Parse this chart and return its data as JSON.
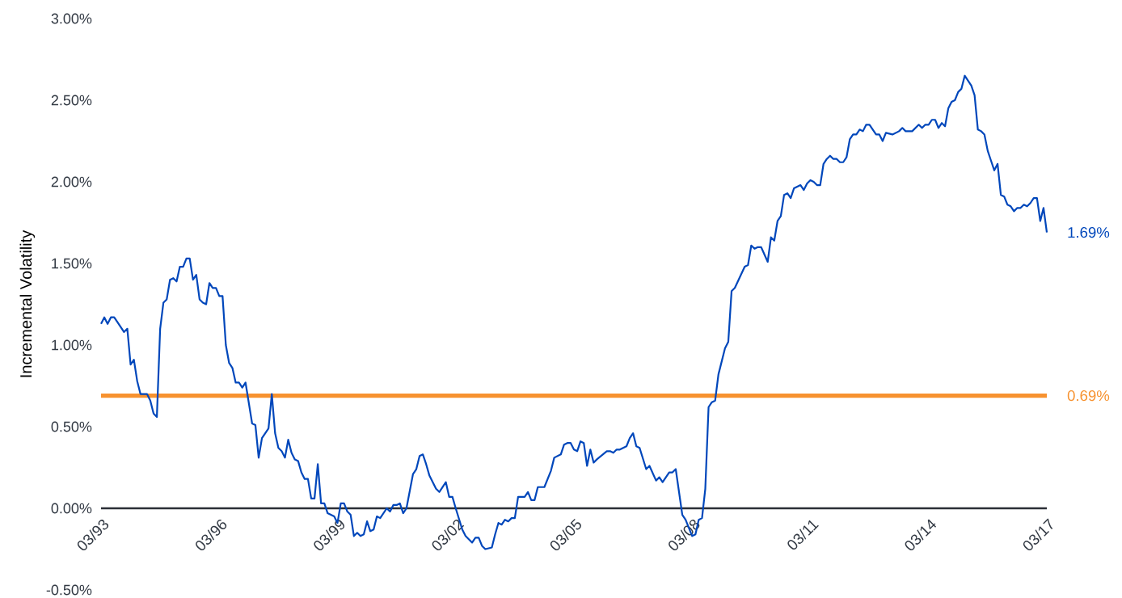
{
  "chart_data": {
    "type": "line",
    "ylabel": "Incremental Volatility",
    "xlim": [
      "1993-03",
      "2017-03"
    ],
    "xticks": [
      {
        "value": "1993-03",
        "label": "03/93"
      },
      {
        "value": "1996-03",
        "label": "03/96"
      },
      {
        "value": "1999-03",
        "label": "03/99"
      },
      {
        "value": "2002-03",
        "label": "03/02"
      },
      {
        "value": "2005-03",
        "label": "03/05"
      },
      {
        "value": "2008-03",
        "label": "03/08"
      },
      {
        "value": "2011-03",
        "label": "03/11"
      },
      {
        "value": "2014-03",
        "label": "03/14"
      },
      {
        "value": "2017-03",
        "label": "03/17"
      }
    ],
    "ylim": [
      -0.5,
      3.0
    ],
    "yticks": [
      {
        "value": -0.5,
        "label": "-0.50%"
      },
      {
        "value": 0,
        "label": "0.00%"
      },
      {
        "value": 0.5,
        "label": "0.50%"
      },
      {
        "value": 1.0,
        "label": "1.00%"
      },
      {
        "value": 1.5,
        "label": "1.50%"
      },
      {
        "value": 2.0,
        "label": "2.00%"
      },
      {
        "value": 2.5,
        "label": "2.50%"
      },
      {
        "value": 3.0,
        "label": "3.00%"
      }
    ],
    "line_style": "solid",
    "series": [
      {
        "color": "#0047bb",
        "x": [
          "1993-03",
          "1993-04",
          "1993-05",
          "1993-06",
          "1993-07",
          "1993-08",
          "1993-10",
          "1993-11",
          "1993-12",
          "1994-01",
          "1994-02",
          "1994-03",
          "1994-05",
          "1994-06",
          "1994-07",
          "1994-08",
          "1994-09",
          "1994-10",
          "1994-11",
          "1994-12",
          "1995-01",
          "1995-02",
          "1995-03",
          "1995-04",
          "1995-05",
          "1995-06",
          "1995-07",
          "1995-08",
          "1995-09",
          "1995-10",
          "1995-11",
          "1995-12",
          "1996-01",
          "1996-02",
          "1996-03",
          "1996-04",
          "1996-05",
          "1996-06",
          "1996-07",
          "1996-08",
          "1996-09",
          "1996-10",
          "1996-11",
          "1997-01",
          "1997-02",
          "1997-03",
          "1997-04",
          "1997-06",
          "1997-07",
          "1997-08",
          "1997-09",
          "1997-10",
          "1997-11",
          "1997-12",
          "1998-01",
          "1998-02",
          "1998-03",
          "1998-04",
          "1998-05",
          "1998-06",
          "1998-07",
          "1998-08",
          "1998-09",
          "1998-10",
          "1998-11",
          "1998-12",
          "1999-02",
          "1999-03",
          "1999-04",
          "1999-05",
          "1999-06",
          "1999-07",
          "1999-08",
          "1999-09",
          "1999-10",
          "1999-11",
          "1999-12",
          "2000-01",
          "2000-02",
          "2000-03",
          "2000-04",
          "2000-06",
          "2000-07",
          "2000-08",
          "2000-09",
          "2000-10",
          "2000-11",
          "2000-12",
          "2001-02",
          "2001-03",
          "2001-04",
          "2001-05",
          "2001-06",
          "2001-07",
          "2001-09",
          "2001-10",
          "2001-12",
          "2002-01",
          "2002-02",
          "2002-03",
          "2002-05",
          "2002-06",
          "2002-08",
          "2002-09",
          "2002-10",
          "2002-11",
          "2002-12",
          "2003-02",
          "2003-03",
          "2003-04",
          "2003-05",
          "2003-06",
          "2003-07",
          "2003-08",
          "2003-09",
          "2003-10",
          "2003-12",
          "2004-01",
          "2004-02",
          "2004-03",
          "2004-04",
          "2004-06",
          "2004-08",
          "2004-09",
          "2004-11",
          "2004-12",
          "2005-01",
          "2005-02",
          "2005-03",
          "2005-04",
          "2005-05",
          "2005-06",
          "2005-07",
          "2005-08",
          "2005-09",
          "2005-10",
          "2006-01",
          "2006-02",
          "2006-03",
          "2006-04",
          "2006-05",
          "2006-06",
          "2006-07",
          "2006-08",
          "2006-09",
          "2006-10",
          "2006-11",
          "2007-01",
          "2007-02",
          "2007-04",
          "2007-05",
          "2007-06",
          "2007-08",
          "2007-09",
          "2007-10",
          "2007-12",
          "2008-01",
          "2008-03",
          "2008-04",
          "2008-05",
          "2008-06",
          "2008-07",
          "2008-08",
          "2008-09",
          "2008-10",
          "2008-11",
          "2009-01",
          "2009-02",
          "2009-03",
          "2009-04",
          "2009-07",
          "2009-08",
          "2009-09",
          "2009-10",
          "2009-11",
          "2009-12",
          "2010-02",
          "2010-03",
          "2010-04",
          "2010-05",
          "2010-06",
          "2010-07",
          "2010-08",
          "2010-09",
          "2010-10",
          "2010-12",
          "2011-01",
          "2011-02",
          "2011-03",
          "2011-04",
          "2011-05",
          "2011-06",
          "2011-07",
          "2011-08",
          "2011-09",
          "2011-10",
          "2011-11",
          "2011-12",
          "2012-01",
          "2012-02",
          "2012-03",
          "2012-04",
          "2012-05",
          "2012-06",
          "2012-07",
          "2012-08",
          "2012-09",
          "2012-11",
          "2012-12",
          "2013-01",
          "2013-02",
          "2013-04",
          "2013-06",
          "2013-07",
          "2013-08",
          "2013-10",
          "2013-12",
          "2014-01",
          "2014-02",
          "2014-03",
          "2014-04",
          "2014-05",
          "2014-06",
          "2014-07",
          "2014-08",
          "2014-09",
          "2014-10",
          "2014-11",
          "2014-12",
          "2015-01",
          "2015-02",
          "2015-04",
          "2015-05",
          "2015-06",
          "2015-07",
          "2015-08",
          "2015-09",
          "2015-10",
          "2015-11",
          "2015-12",
          "2016-01",
          "2016-02",
          "2016-03",
          "2016-04",
          "2016-05",
          "2016-06",
          "2016-07",
          "2016-08",
          "2016-09",
          "2016-10",
          "2016-11",
          "2016-12",
          "2017-01",
          "2017-02",
          "2017-03"
        ],
        "values": [
          1.13,
          1.17,
          1.13,
          1.17,
          1.17,
          1.14,
          1.08,
          1.1,
          0.88,
          0.91,
          0.78,
          0.7,
          0.7,
          0.66,
          0.58,
          0.56,
          1.1,
          1.26,
          1.28,
          1.4,
          1.41,
          1.39,
          1.48,
          1.48,
          1.53,
          1.53,
          1.4,
          1.43,
          1.28,
          1.26,
          1.25,
          1.38,
          1.35,
          1.35,
          1.3,
          1.3,
          1.0,
          0.89,
          0.86,
          0.77,
          0.77,
          0.74,
          0.77,
          0.52,
          0.51,
          0.31,
          0.43,
          0.49,
          0.7,
          0.46,
          0.37,
          0.35,
          0.31,
          0.42,
          0.34,
          0.3,
          0.29,
          0.22,
          0.18,
          0.18,
          0.06,
          0.06,
          0.27,
          0.03,
          0.03,
          -0.03,
          -0.05,
          -0.09,
          0.03,
          0.03,
          -0.02,
          -0.04,
          -0.17,
          -0.15,
          -0.17,
          -0.16,
          -0.08,
          -0.14,
          -0.13,
          -0.05,
          -0.06,
          0.0,
          -0.02,
          0.02,
          0.02,
          0.03,
          -0.03,
          0.0,
          0.21,
          0.24,
          0.32,
          0.33,
          0.27,
          0.2,
          0.12,
          0.1,
          0.16,
          0.07,
          0.07,
          0.0,
          -0.13,
          -0.17,
          -0.21,
          -0.18,
          -0.18,
          -0.23,
          -0.25,
          -0.24,
          -0.16,
          -0.09,
          -0.1,
          -0.07,
          -0.08,
          -0.06,
          -0.06,
          0.07,
          0.07,
          0.1,
          0.05,
          0.05,
          0.13,
          0.13,
          0.23,
          0.31,
          0.33,
          0.39,
          0.4,
          0.4,
          0.36,
          0.35,
          0.41,
          0.4,
          0.26,
          0.36,
          0.28,
          0.3,
          0.35,
          0.35,
          0.34,
          0.36,
          0.36,
          0.37,
          0.38,
          0.43,
          0.46,
          0.38,
          0.37,
          0.24,
          0.26,
          0.17,
          0.19,
          0.16,
          0.22,
          0.22,
          0.24,
          -0.04,
          -0.07,
          -0.17,
          -0.16,
          -0.07,
          -0.06,
          0.12,
          0.62,
          0.65,
          0.66,
          0.82,
          0.98,
          1.02,
          1.33,
          1.35,
          1.48,
          1.49,
          1.61,
          1.59,
          1.6,
          1.6,
          1.51,
          1.66,
          1.64,
          1.76,
          1.79,
          1.92,
          1.93,
          1.9,
          1.96,
          1.98,
          1.95,
          1.99,
          2.01,
          2.0,
          1.98,
          1.98,
          2.11,
          2.14,
          2.16,
          2.14,
          2.14,
          2.12,
          2.12,
          2.15,
          2.26,
          2.29,
          2.29,
          2.32,
          2.31,
          2.35,
          2.35,
          2.29,
          2.29,
          2.25,
          2.3,
          2.29,
          2.31,
          2.33,
          2.31,
          2.31,
          2.35,
          2.33,
          2.35,
          2.35,
          2.38,
          2.38,
          2.33,
          2.36,
          2.34,
          2.45,
          2.49,
          2.5,
          2.55,
          2.57,
          2.65,
          2.59,
          2.53,
          2.32,
          2.31,
          2.29,
          2.19,
          2.13,
          2.07,
          2.11,
          1.92,
          1.91,
          1.86,
          1.85,
          1.82,
          1.84,
          1.84,
          1.86,
          1.85,
          1.87,
          1.9,
          1.9,
          1.76,
          1.84,
          1.69
        ]
      }
    ],
    "ref_lines": [
      {
        "axis": "y",
        "value": 0.69,
        "label": "0.69%",
        "color": "#f7922f"
      }
    ],
    "annotations": [
      {
        "text": "1.69%",
        "x": "2017-03",
        "y": 1.69
      }
    ]
  }
}
